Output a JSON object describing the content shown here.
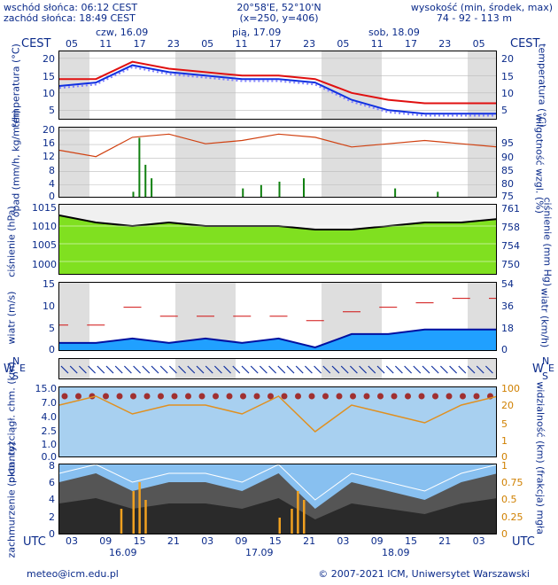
{
  "header": {
    "sunrise": "wschód słońca: 06:12 CEST",
    "sunset": "zachód słońca: 18:49 CEST",
    "coords": "20°58'E, 52°10'N",
    "grid": "(x=250,  y=406)",
    "height_label": "wysokość (min, środek, max)",
    "height_values": "74 - 92 - 113 m",
    "tz_left": "CEST",
    "tz_right": "CEST",
    "days_top": [
      "czw, 16.09",
      "pią, 17.09",
      "sob, 18.09"
    ],
    "hours_top": [
      "05",
      "11",
      "17",
      "23",
      "05",
      "11",
      "17",
      "23",
      "05",
      "11",
      "17",
      "23",
      "05"
    ]
  },
  "footer": {
    "tz_left": "UTC",
    "tz_right": "UTC",
    "hours_bottom": [
      "03",
      "09",
      "15",
      "21",
      "03",
      "09",
      "15",
      "21",
      "03",
      "09",
      "15",
      "21",
      "03"
    ],
    "dates_bottom": [
      "16.09",
      "17.09",
      "18.09"
    ],
    "email": "meteo@icm.edu.pl",
    "copyright": "© 2007-2021 ICM, Uniwersytet Warszawski"
  },
  "panels": {
    "temperature": {
      "ylabel_left": "temperatura (°C)",
      "ylabel_right": "temperatura (°C)",
      "ticks": [
        "20",
        "15",
        "10",
        "5"
      ]
    },
    "precip": {
      "ylabel_left": "opad (mm/h, kg/m²/h)",
      "ylabel_right": "wilgotność wzgl. (%)",
      "ticks_left": [
        "20",
        "16",
        "12",
        "8",
        "4",
        "0"
      ],
      "ticks_right": [
        "95",
        "90",
        "85",
        "80",
        "75"
      ]
    },
    "pressure": {
      "ylabel_left": "ciśnienie (hPa)",
      "ylabel_right": "ciśnienie (mm Hg)",
      "ticks_left": [
        "1015",
        "1010",
        "1005",
        "1000"
      ],
      "ticks_right": [
        "761",
        "758",
        "754",
        "750"
      ]
    },
    "wind": {
      "ylabel_left": "wiatr (m/s)",
      "ylabel_right": "wiatr (km/h)",
      "ticks_left": [
        "15",
        "10",
        "5",
        "0"
      ],
      "ticks_right": [
        "54",
        "36",
        "18",
        "0"
      ]
    },
    "winddir": {
      "compass_left": [
        "N",
        "W",
        "E",
        "S"
      ],
      "compass_right": [
        "N",
        "W",
        "E",
        "S"
      ]
    },
    "cloudbase": {
      "ylabel_left": "pion. rozciągł. chm. (km)",
      "ylabel_right": "widzialność (km)",
      "ticks_left": [
        "15.0",
        "7.0",
        "4.0",
        "2.5",
        "1.0",
        "0.0"
      ],
      "ticks_right": [
        "100",
        "20",
        "5",
        "1",
        "0"
      ]
    },
    "cloudcover": {
      "ylabel_left": "zachmurzenie (oktanty)",
      "ylabel_right": "(frakcja) mgła",
      "ticks_left": [
        "8",
        "6",
        "4",
        "2",
        "0"
      ],
      "ticks_right": [
        "1",
        "0.75",
        "0.5",
        "0.25",
        "0"
      ]
    }
  },
  "colors": {
    "text": "#0a2a8a",
    "temp_max": "#e01010",
    "temp_min": "#1030e0",
    "dew": "#8080ff",
    "rh": "#d04010",
    "precip": "#108010",
    "pressure_fill": "#80e020",
    "wind_fill": "#20a0ff",
    "gust": "#d01010",
    "band": "#a0a0a0"
  },
  "chart_data": {
    "type": "line",
    "x_hours": [
      0,
      6,
      12,
      18,
      24,
      30,
      36,
      42,
      48,
      54,
      60,
      66,
      72
    ],
    "temperature_max": [
      14,
      14,
      19,
      17,
      16,
      15,
      15,
      14,
      10,
      8,
      7,
      7,
      7
    ],
    "temperature_min": [
      12,
      13,
      18,
      16,
      15,
      14,
      14,
      13,
      8,
      5,
      4,
      4,
      4
    ],
    "relative_humidity": [
      90,
      88,
      94,
      95,
      92,
      93,
      95,
      94,
      91,
      92,
      93,
      92,
      91
    ],
    "pressure_hpa": [
      1013,
      1011,
      1010,
      1011,
      1010,
      1010,
      1010,
      1009,
      1009,
      1010,
      1011,
      1011,
      1012
    ],
    "wind_ms": [
      2,
      2,
      3,
      2,
      3,
      2,
      3,
      1,
      4,
      4,
      5,
      5,
      5
    ],
    "gust_ms": [
      6,
      6,
      10,
      8,
      8,
      8,
      8,
      7,
      9,
      10,
      11,
      12,
      12
    ],
    "cloud_oktas": [
      6,
      7,
      5,
      6,
      6,
      5,
      7,
      3,
      6,
      5,
      4,
      6,
      7
    ]
  }
}
